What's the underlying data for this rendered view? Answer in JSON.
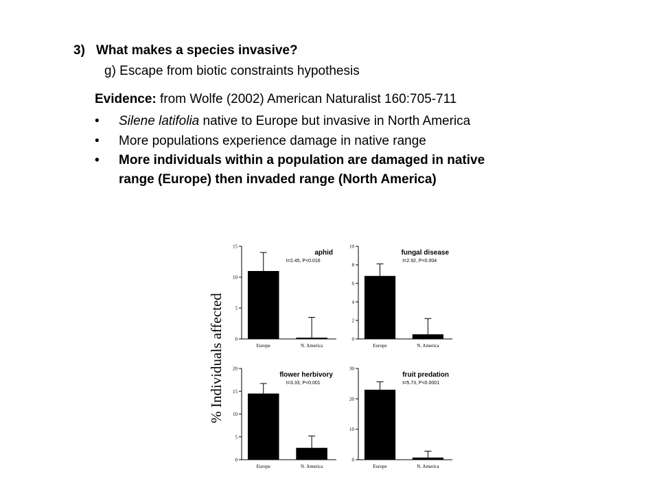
{
  "slide": {
    "heading_number": "3)",
    "heading_text": "What makes a species invasive?",
    "subheading": "g) Escape from biotic constraints hypothesis",
    "evidence_label": "Evidence:",
    "evidence_text": " from Wolfe (2002) American Naturalist 160:705-711",
    "bullet_glyph": "•",
    "bullets": [
      {
        "italic": "Silene latifolia",
        "text": " native to Europe but invasive in North America"
      },
      {
        "text": "More populations experience damage in native range"
      },
      {
        "line1": "More individuals within a population are damaged in native",
        "line2": "range (Europe) then invaded range (North America)"
      }
    ]
  },
  "chart_data": {
    "type": "bar",
    "ylabel": "% Individuals affected",
    "categories": [
      "Europe",
      "N. America"
    ],
    "panels": [
      {
        "title": "aphid",
        "stat": "t=2.45, P<0.016",
        "ylim": [
          0,
          15
        ],
        "yticks": [
          "0",
          "5",
          "10",
          "15"
        ],
        "values": [
          11,
          0.2
        ],
        "errors": [
          3,
          3.3
        ]
      },
      {
        "title": "fungal disease",
        "stat": "t=2.92, P<0.004",
        "ylim": [
          0,
          10
        ],
        "yticks": [
          "0",
          "2",
          "4",
          "6",
          "8",
          "10"
        ],
        "values": [
          6.8,
          0.5
        ],
        "errors": [
          1.3,
          1.7
        ]
      },
      {
        "title": "flower herbivory",
        "stat": "t=3.33, P<0.001",
        "ylim": [
          0,
          20
        ],
        "yticks": [
          "0",
          "5",
          "10",
          "15",
          "20"
        ],
        "values": [
          14.5,
          2.6
        ],
        "errors": [
          2.2,
          2.6
        ]
      },
      {
        "title": "fruit predation",
        "stat": "t=5.73, P<0.0001",
        "ylim": [
          0,
          30
        ],
        "yticks": [
          "0",
          "10",
          "20",
          "30"
        ],
        "values": [
          23,
          0.7
        ],
        "errors": [
          2.6,
          2.1
        ]
      }
    ],
    "bar_color": "#000000"
  }
}
